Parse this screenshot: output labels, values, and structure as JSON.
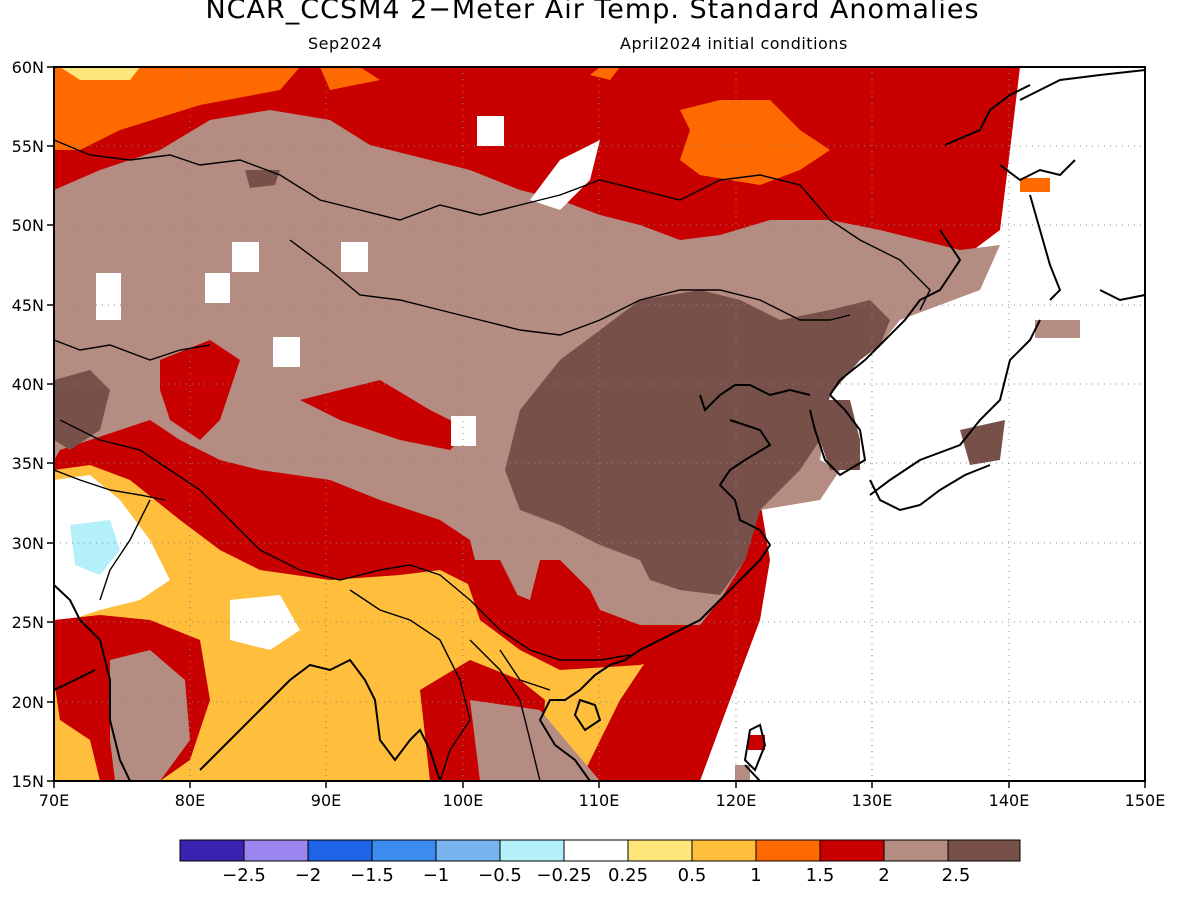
{
  "title": "NCAR_CCSM4 2−Meter Air Temp. Standard Anomalies",
  "subtitle_left": "Sep2024",
  "subtitle_right": "April2024 initial conditions",
  "lat_ticks": [
    "15N",
    "20N",
    "25N",
    "30N",
    "35N",
    "40N",
    "45N",
    "50N",
    "55N",
    "60N"
  ],
  "lon_ticks": [
    "70E",
    "80E",
    "90E",
    "100E",
    "110E",
    "120E",
    "130E",
    "140E",
    "150E"
  ],
  "map_extent": {
    "lon_min": 70,
    "lon_max": 150,
    "lat_min": 15,
    "lat_max": 60
  },
  "colorbar": {
    "colors": [
      "#3a22b0",
      "#9b86f0",
      "#1e64e6",
      "#3c8cf0",
      "#78b4f0",
      "#b4f0fa",
      "#ffffff",
      "#ffe67a",
      "#ffbe3c",
      "#ff6a00",
      "#c80000",
      "#b48c82",
      "#78504a"
    ],
    "labels": [
      "−2.5",
      "−2",
      "−1.5",
      "−1",
      "−0.5",
      "−0.25",
      "0.25",
      "0.5",
      "1",
      "1.5",
      "2",
      "2.5"
    ]
  },
  "regions": [
    "gt 2.5 standard anomaly over eastern China and Korea",
    "2 to 2.5 over Mongolia and central Asia",
    "1.5 to 2 over southern Siberia and Tibet",
    "0.5 to 1 over India and Myanmar"
  ]
}
